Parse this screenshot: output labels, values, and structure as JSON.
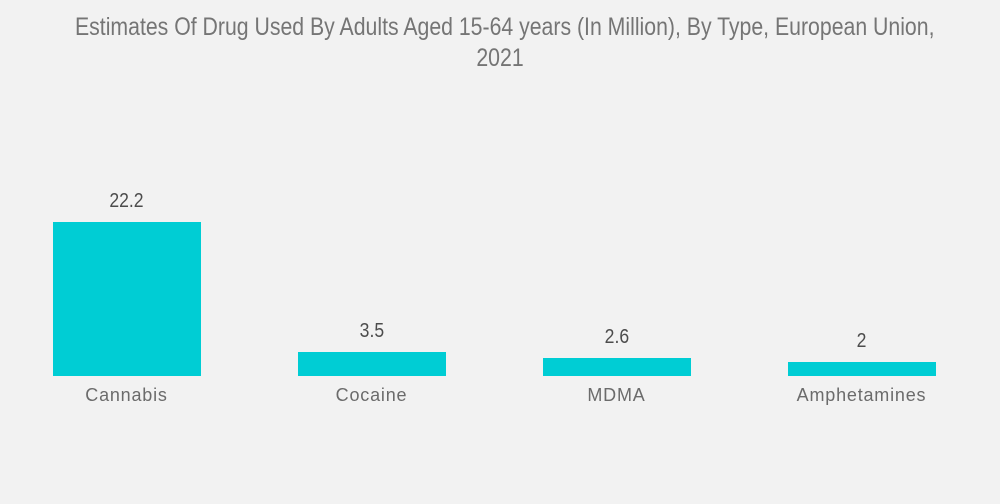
{
  "title": {
    "line1": "Estimates Of Drug Used By Adults Aged 15-64 years (In Million), By Type, European Union,",
    "line2": "2021"
  },
  "chart_data": {
    "type": "bar",
    "title": "Estimates Of Drug Used By Adults Aged 15-64 years (In Million), By Type, European Union, 2021",
    "categories": [
      "Cannabis",
      "Cocaine",
      "MDMA",
      "Amphetamines"
    ],
    "values": [
      22.2,
      3.5,
      2.6,
      2
    ],
    "value_labels": [
      "22.2",
      "3.5",
      "2.6",
      "2"
    ],
    "xlabel": "",
    "ylabel": "",
    "ylim": [
      0,
      22.2
    ],
    "grid": false,
    "legend": false,
    "axes_visible": false,
    "bar_color": "#00CDD4",
    "background_color": "#F2F2F2",
    "title_color": "#757575",
    "value_label_color": "#4C4C4C",
    "category_label_color": "#6B6B6B"
  }
}
